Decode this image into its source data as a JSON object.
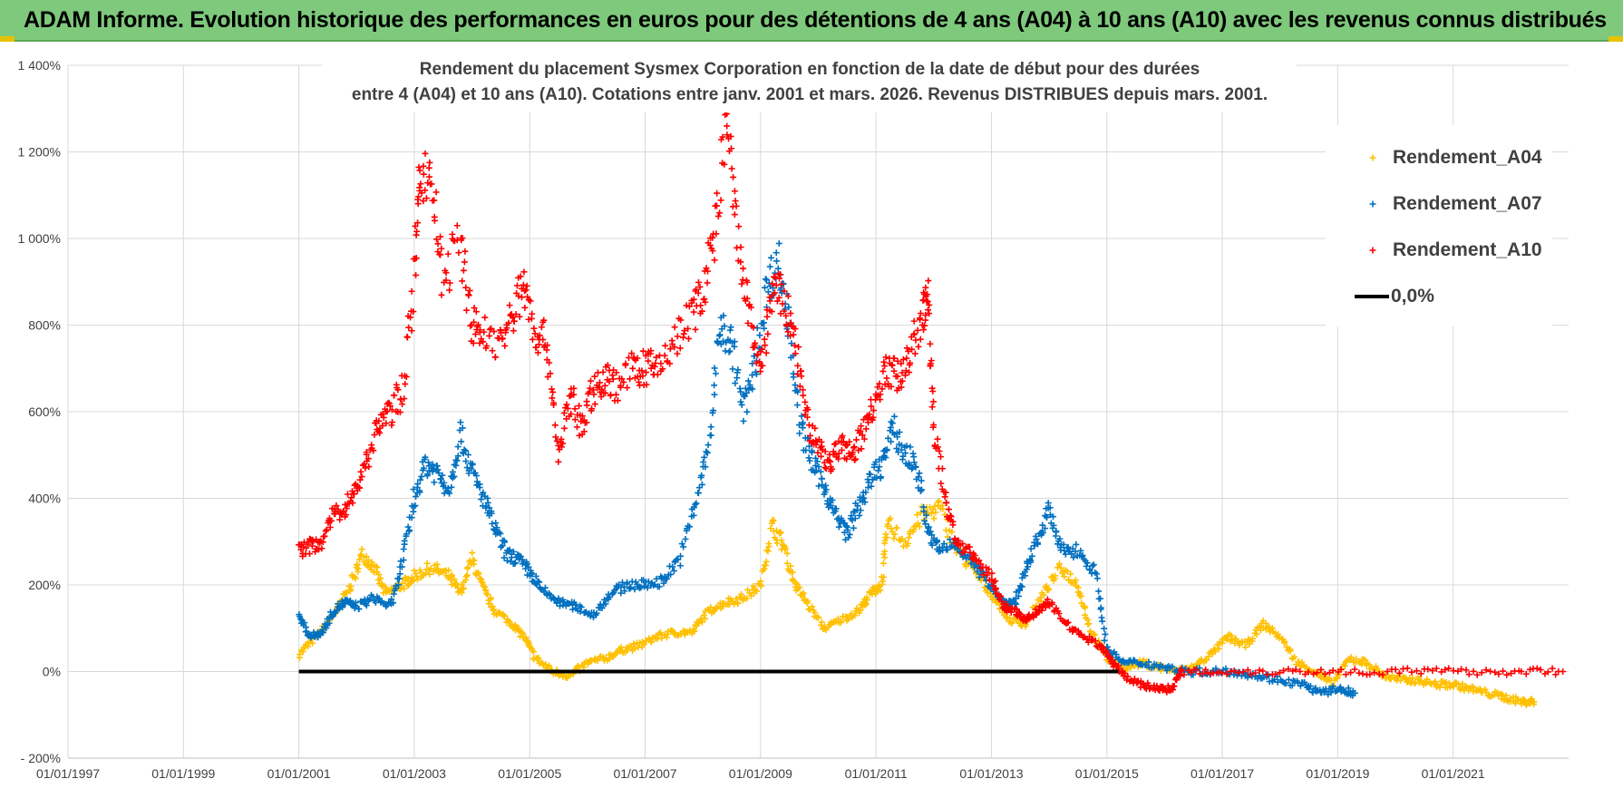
{
  "header": {
    "title": "ADAM Informe. Evolution historique des performances en euros pour des détentions de 4 ans (A04) à 10 ans (A10) avec les revenus connus distribués"
  },
  "colors": {
    "header_bg": "#7ec97b",
    "a04": "#ffc000",
    "a07": "#0070c0",
    "a10": "#ff0000",
    "zero_line": "#000000",
    "grid": "#d9d9d9"
  },
  "chart_data": {
    "type": "scatter",
    "title_line1": "Rendement du placement Sysmex Corporation en fonction de la date de début pour des durées",
    "title_line2": "entre 4 (A04) et 10 ans (A10). Cotations entre janv. 2001 et mars. 2026. Revenus DISTRIBUES depuis mars. 2001.",
    "xlabel": "",
    "ylabel": "",
    "x_range_years": [
      1997.0,
      2023.0
    ],
    "ylim": [
      -200,
      1400
    ],
    "x_ticks": [
      "01/01/1997",
      "01/01/1999",
      "01/01/2001",
      "01/01/2003",
      "01/01/2005",
      "01/01/2007",
      "01/01/2009",
      "01/01/2011",
      "01/01/2013",
      "01/01/2015",
      "01/01/2017",
      "01/01/2019",
      "01/01/2021"
    ],
    "x_tick_years": [
      1997,
      1999,
      2001,
      2003,
      2005,
      2007,
      2009,
      2011,
      2013,
      2015,
      2017,
      2019,
      2021
    ],
    "y_ticks": [
      "- 200%",
      "0%",
      "200%",
      "400%",
      "600%",
      "800%",
      "1 000%",
      "1 200%",
      "1 400%"
    ],
    "y_tick_values": [
      -200,
      0,
      200,
      400,
      600,
      800,
      1000,
      1200,
      1400
    ],
    "legend_position": "top-right",
    "series": [
      {
        "name": "Rendement_A04",
        "color": "#ffc000",
        "marker": "+",
        "points": [
          [
            2001.0,
            40
          ],
          [
            2001.3,
            80
          ],
          [
            2001.6,
            130
          ],
          [
            2001.9,
            200
          ],
          [
            2002.1,
            270
          ],
          [
            2002.3,
            240
          ],
          [
            2002.5,
            180
          ],
          [
            2002.8,
            200
          ],
          [
            2003.0,
            220
          ],
          [
            2003.3,
            240
          ],
          [
            2003.6,
            220
          ],
          [
            2003.8,
            180
          ],
          [
            2004.0,
            260
          ],
          [
            2004.2,
            190
          ],
          [
            2004.4,
            140
          ],
          [
            2004.7,
            110
          ],
          [
            2004.9,
            80
          ],
          [
            2005.1,
            30
          ],
          [
            2005.4,
            0
          ],
          [
            2005.7,
            -10
          ],
          [
            2006.0,
            20
          ],
          [
            2006.3,
            30
          ],
          [
            2006.6,
            50
          ],
          [
            2006.9,
            60
          ],
          [
            2007.2,
            80
          ],
          [
            2007.5,
            90
          ],
          [
            2007.8,
            90
          ],
          [
            2008.1,
            140
          ],
          [
            2008.4,
            160
          ],
          [
            2008.7,
            170
          ],
          [
            2009.0,
            200
          ],
          [
            2009.2,
            340
          ],
          [
            2009.4,
            290
          ],
          [
            2009.6,
            200
          ],
          [
            2009.8,
            160
          ],
          [
            2010.1,
            100
          ],
          [
            2010.4,
            120
          ],
          [
            2010.7,
            140
          ],
          [
            2010.9,
            180
          ],
          [
            2011.1,
            200
          ],
          [
            2011.2,
            340
          ],
          [
            2011.5,
            300
          ],
          [
            2011.8,
            360
          ],
          [
            2012.1,
            380
          ],
          [
            2012.4,
            280
          ],
          [
            2012.7,
            230
          ],
          [
            2013.0,
            180
          ],
          [
            2013.3,
            120
          ],
          [
            2013.6,
            110
          ],
          [
            2013.9,
            180
          ],
          [
            2014.2,
            240
          ],
          [
            2014.5,
            200
          ],
          [
            2014.7,
            100
          ],
          [
            2015.0,
            30
          ],
          [
            2015.3,
            10
          ],
          [
            2015.6,
            20
          ],
          [
            2015.9,
            10
          ],
          [
            2016.2,
            0
          ],
          [
            2016.5,
            10
          ],
          [
            2016.8,
            40
          ],
          [
            2017.1,
            80
          ],
          [
            2017.4,
            60
          ],
          [
            2017.7,
            110
          ],
          [
            2018.0,
            80
          ],
          [
            2018.3,
            20
          ],
          [
            2018.6,
            0
          ],
          [
            2018.9,
            -30
          ],
          [
            2019.2,
            30
          ],
          [
            2019.5,
            20
          ],
          [
            2019.8,
            -10
          ],
          [
            2020.1,
            -20
          ],
          [
            2020.4,
            -20
          ],
          [
            2020.7,
            -30
          ],
          [
            2021.0,
            -30
          ],
          [
            2021.3,
            -40
          ],
          [
            2021.6,
            -50
          ],
          [
            2021.9,
            -60
          ],
          [
            2022.2,
            -70
          ],
          [
            2022.4,
            -70
          ]
        ]
      },
      {
        "name": "Rendement_A07",
        "color": "#0070c0",
        "marker": "+",
        "points": [
          [
            2001.0,
            130
          ],
          [
            2001.2,
            80
          ],
          [
            2001.4,
            90
          ],
          [
            2001.6,
            140
          ],
          [
            2001.8,
            160
          ],
          [
            2002.0,
            150
          ],
          [
            2002.3,
            170
          ],
          [
            2002.6,
            150
          ],
          [
            2002.8,
            260
          ],
          [
            2003.0,
            400
          ],
          [
            2003.2,
            480
          ],
          [
            2003.4,
            460
          ],
          [
            2003.6,
            420
          ],
          [
            2003.8,
            550
          ],
          [
            2004.0,
            460
          ],
          [
            2004.2,
            400
          ],
          [
            2004.4,
            330
          ],
          [
            2004.6,
            270
          ],
          [
            2004.8,
            260
          ],
          [
            2005.0,
            230
          ],
          [
            2005.2,
            190
          ],
          [
            2005.5,
            160
          ],
          [
            2005.8,
            150
          ],
          [
            2006.1,
            130
          ],
          [
            2006.4,
            180
          ],
          [
            2006.7,
            200
          ],
          [
            2007.0,
            200
          ],
          [
            2007.3,
            210
          ],
          [
            2007.6,
            260
          ],
          [
            2007.9,
            400
          ],
          [
            2008.1,
            520
          ],
          [
            2008.3,
            800
          ],
          [
            2008.5,
            760
          ],
          [
            2008.7,
            600
          ],
          [
            2008.9,
            700
          ],
          [
            2009.1,
            880
          ],
          [
            2009.3,
            950
          ],
          [
            2009.5,
            800
          ],
          [
            2009.7,
            560
          ],
          [
            2009.9,
            480
          ],
          [
            2010.1,
            430
          ],
          [
            2010.3,
            360
          ],
          [
            2010.5,
            320
          ],
          [
            2010.7,
            380
          ],
          [
            2010.9,
            440
          ],
          [
            2011.1,
            480
          ],
          [
            2011.3,
            560
          ],
          [
            2011.5,
            500
          ],
          [
            2011.7,
            480
          ],
          [
            2011.9,
            320
          ],
          [
            2012.1,
            280
          ],
          [
            2012.4,
            300
          ],
          [
            2012.7,
            240
          ],
          [
            2013.0,
            200
          ],
          [
            2013.2,
            160
          ],
          [
            2013.4,
            160
          ],
          [
            2013.6,
            230
          ],
          [
            2013.8,
            310
          ],
          [
            2014.0,
            370
          ],
          [
            2014.2,
            280
          ],
          [
            2014.5,
            280
          ],
          [
            2014.8,
            230
          ],
          [
            2015.0,
            50
          ],
          [
            2015.3,
            20
          ],
          [
            2015.6,
            20
          ],
          [
            2016.0,
            10
          ],
          [
            2016.4,
            0
          ],
          [
            2016.8,
            0
          ],
          [
            2017.2,
            0
          ],
          [
            2017.6,
            -10
          ],
          [
            2018.0,
            -20
          ],
          [
            2018.4,
            -30
          ],
          [
            2018.7,
            -50
          ],
          [
            2019.0,
            -40
          ],
          [
            2019.3,
            -50
          ]
        ]
      },
      {
        "name": "Rendement_A10",
        "color": "#ff0000",
        "marker": "+",
        "points": [
          [
            2001.0,
            280
          ],
          [
            2001.2,
            290
          ],
          [
            2001.4,
            300
          ],
          [
            2001.6,
            360
          ],
          [
            2001.8,
            380
          ],
          [
            2002.0,
            420
          ],
          [
            2002.2,
            500
          ],
          [
            2002.4,
            580
          ],
          [
            2002.6,
            600
          ],
          [
            2002.8,
            650
          ],
          [
            2003.0,
            900
          ],
          [
            2003.1,
            1160
          ],
          [
            2003.3,
            1130
          ],
          [
            2003.5,
            900
          ],
          [
            2003.8,
            1000
          ],
          [
            2004.0,
            800
          ],
          [
            2004.2,
            780
          ],
          [
            2004.5,
            760
          ],
          [
            2004.7,
            820
          ],
          [
            2004.9,
            900
          ],
          [
            2005.1,
            780
          ],
          [
            2005.3,
            760
          ],
          [
            2005.5,
            500
          ],
          [
            2005.7,
            640
          ],
          [
            2005.9,
            560
          ],
          [
            2006.1,
            650
          ],
          [
            2006.3,
            680
          ],
          [
            2006.5,
            660
          ],
          [
            2006.8,
            700
          ],
          [
            2007.0,
            700
          ],
          [
            2007.2,
            700
          ],
          [
            2007.5,
            760
          ],
          [
            2007.8,
            820
          ],
          [
            2008.0,
            880
          ],
          [
            2008.2,
            1000
          ],
          [
            2008.4,
            1280
          ],
          [
            2008.6,
            1000
          ],
          [
            2008.8,
            820
          ],
          [
            2009.0,
            700
          ],
          [
            2009.2,
            880
          ],
          [
            2009.4,
            860
          ],
          [
            2009.6,
            760
          ],
          [
            2009.8,
            580
          ],
          [
            2010.0,
            520
          ],
          [
            2010.2,
            480
          ],
          [
            2010.4,
            520
          ],
          [
            2010.6,
            500
          ],
          [
            2010.8,
            560
          ],
          [
            2011.0,
            640
          ],
          [
            2011.2,
            700
          ],
          [
            2011.4,
            680
          ],
          [
            2011.6,
            740
          ],
          [
            2011.8,
            820
          ],
          [
            2011.9,
            860
          ],
          [
            2012.0,
            560
          ],
          [
            2012.2,
            400
          ],
          [
            2012.4,
            300
          ],
          [
            2012.7,
            260
          ],
          [
            2013.0,
            220
          ],
          [
            2013.2,
            150
          ],
          [
            2013.4,
            140
          ],
          [
            2013.6,
            120
          ],
          [
            2013.8,
            140
          ],
          [
            2014.0,
            160
          ],
          [
            2014.3,
            110
          ],
          [
            2014.6,
            80
          ],
          [
            2014.9,
            60
          ],
          [
            2015.1,
            20
          ],
          [
            2015.3,
            -10
          ],
          [
            2015.6,
            -30
          ],
          [
            2015.9,
            -40
          ],
          [
            2016.1,
            -40
          ],
          [
            2016.3,
            0
          ],
          [
            2017.0,
            0
          ],
          [
            2018.0,
            0
          ],
          [
            2019.0,
            0
          ],
          [
            2020.0,
            0
          ],
          [
            2021.0,
            0
          ],
          [
            2022.0,
            0
          ],
          [
            2022.9,
            0
          ]
        ]
      },
      {
        "name": "0,0%",
        "color": "#000000",
        "type": "line",
        "points": [
          [
            2001.0,
            0
          ],
          [
            2015.2,
            0
          ]
        ]
      }
    ]
  }
}
